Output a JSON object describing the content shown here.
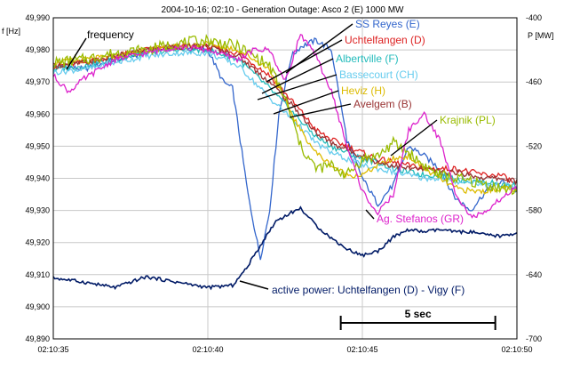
{
  "chart_data": {
    "type": "line",
    "title": "2004-10-16; 02:10 - Generation Outage: Asco 2 (E) 1000 MW",
    "ylabel_left": "f [Hz]",
    "ylabel_right": "P [MW]",
    "ylim_left": [
      49.89,
      49.99
    ],
    "ylim_right": [
      -700,
      -400
    ],
    "xlim_seconds": [
      0,
      15
    ],
    "x_ticks": [
      "02:10:35",
      "02:10:40",
      "02:10:45",
      "02:10:50"
    ],
    "y_ticks_left": [
      "49,990",
      "49,980",
      "49,970",
      "49,960",
      "49,950",
      "49,940",
      "49,930",
      "49,920",
      "49,910",
      "49,900",
      "49,890"
    ],
    "y_ticks_right": [
      "-400",
      "-460",
      "-520",
      "-580",
      "-640",
      "-700"
    ],
    "grid": true,
    "scale_bar_label": "5 sec",
    "frequency_label": "frequency",
    "power_label": "active power: Uchtelfangen (D) - Vigy (F)",
    "series": [
      {
        "name": "SS Reyes (E)",
        "color": "#3366cc",
        "axis": "left",
        "x": [
          0,
          1,
          2,
          3,
          4,
          5,
          5.5,
          5.8,
          6,
          6.3,
          6.7,
          7,
          7.3,
          7.7,
          8,
          8.5,
          9,
          9.5,
          10,
          10.5,
          11,
          11.5,
          12,
          12.5,
          13,
          13.5,
          14,
          14.5,
          15
        ],
        "y": [
          49.975,
          49.974,
          49.977,
          49.979,
          49.981,
          49.98,
          49.97,
          49.968,
          49.955,
          49.935,
          49.915,
          49.93,
          49.96,
          49.978,
          49.981,
          49.983,
          49.98,
          49.952,
          49.94,
          49.932,
          49.938,
          49.95,
          49.947,
          49.943,
          49.934,
          49.93,
          49.936,
          49.939,
          49.936
        ]
      },
      {
        "name": "Uchtelfangen (D)",
        "color": "#dd2222",
        "axis": "left",
        "x": [
          0,
          1,
          2,
          3,
          4,
          5,
          6,
          7,
          8,
          8.5,
          9,
          9.5,
          10,
          10.5,
          11,
          11.5,
          12,
          12.5,
          13,
          13.5,
          14,
          14.5,
          15
        ],
        "y": [
          49.975,
          49.976,
          49.978,
          49.98,
          49.981,
          49.981,
          49.979,
          49.972,
          49.961,
          49.955,
          49.952,
          49.95,
          49.948,
          49.946,
          49.945,
          49.944,
          49.943,
          49.943,
          49.943,
          49.942,
          49.941,
          49.941,
          49.938
        ]
      },
      {
        "name": "Albertville (F)",
        "color": "#22bbbb",
        "axis": "left",
        "x": [
          0,
          1,
          2,
          3,
          4,
          5,
          6,
          7,
          8,
          8.5,
          9,
          9.5,
          10,
          10.5,
          11,
          11.5,
          12,
          12.5,
          13,
          13.5,
          14,
          14.5,
          15
        ],
        "y": [
          49.974,
          49.975,
          49.977,
          49.979,
          49.98,
          49.98,
          49.977,
          49.968,
          49.958,
          49.953,
          49.95,
          49.948,
          49.946,
          49.945,
          49.943,
          49.942,
          49.941,
          49.941,
          49.94,
          49.939,
          49.939,
          49.938,
          49.938
        ]
      },
      {
        "name": "Bassecourt (CH)",
        "color": "#66ccee",
        "axis": "left",
        "x": [
          0,
          1,
          2,
          3,
          4,
          5,
          6,
          7,
          8,
          8.5,
          9,
          9.5,
          10,
          10.5,
          11,
          11.5,
          12,
          12.5,
          13,
          13.5,
          14,
          14.5,
          15
        ],
        "y": [
          49.973,
          49.974,
          49.976,
          49.978,
          49.979,
          49.979,
          49.975,
          49.965,
          49.956,
          49.951,
          49.948,
          49.946,
          49.944,
          49.943,
          49.942,
          49.941,
          49.94,
          49.94,
          49.939,
          49.939,
          49.938,
          49.938,
          49.937
        ]
      },
      {
        "name": "Heviz (H)",
        "color": "#ddbb00",
        "axis": "left",
        "x": [
          0,
          1,
          2,
          3,
          4,
          5,
          6,
          6.5,
          7,
          7.5,
          8,
          8.5,
          9,
          9.5,
          10,
          10.5,
          11,
          11.5,
          12,
          12.5,
          13,
          13.5,
          14,
          14.5,
          15
        ],
        "y": [
          49.976,
          49.977,
          49.978,
          49.98,
          49.981,
          49.982,
          49.98,
          49.977,
          49.974,
          49.964,
          49.955,
          49.948,
          49.944,
          49.941,
          49.941,
          49.944,
          49.946,
          49.947,
          49.943,
          49.94,
          49.937,
          49.936,
          49.936,
          49.937,
          49.936
        ]
      },
      {
        "name": "Avelgem (B)",
        "color": "#993333",
        "axis": "left",
        "x": [
          0,
          1,
          2,
          3,
          4,
          5,
          6,
          7,
          8,
          8.5,
          9,
          9.5,
          10,
          10.5,
          11,
          11.5,
          12,
          12.5,
          13,
          13.5,
          14,
          14.5,
          15
        ],
        "y": [
          49.975,
          49.976,
          49.978,
          49.98,
          49.981,
          49.981,
          49.978,
          49.97,
          49.96,
          49.954,
          49.951,
          49.949,
          49.947,
          49.945,
          49.944,
          49.943,
          49.943,
          49.942,
          49.942,
          49.941,
          49.94,
          49.94,
          49.939
        ]
      },
      {
        "name": "Krajnik (PL)",
        "color": "#99bb00",
        "axis": "left",
        "x": [
          0,
          1,
          2,
          3,
          4,
          5,
          6,
          6.5,
          7,
          7.5,
          8,
          8.5,
          9,
          9.5,
          10,
          10.5,
          11,
          11.5,
          12,
          12.5,
          13,
          13.5,
          14,
          14.5,
          15
        ],
        "y": [
          49.976,
          49.977,
          49.979,
          49.98,
          49.982,
          49.983,
          49.981,
          49.978,
          49.975,
          49.965,
          49.95,
          49.943,
          49.944,
          49.941,
          49.946,
          49.947,
          49.951,
          49.948,
          49.944,
          49.941,
          49.94,
          49.939,
          49.938,
          49.937,
          49.936
        ]
      },
      {
        "name": "Ag. Stefanos (GR)",
        "color": "#dd22cc",
        "axis": "left",
        "x": [
          0,
          0.5,
          1,
          2,
          3,
          4,
          5,
          6,
          6.5,
          7,
          7.5,
          8,
          8.5,
          9,
          9.5,
          10,
          10.5,
          11,
          11.5,
          12,
          12.5,
          13,
          13.5,
          14,
          14.5,
          15
        ],
        "y": [
          49.972,
          49.967,
          49.971,
          49.977,
          49.979,
          49.981,
          49.98,
          49.977,
          49.98,
          49.98,
          49.97,
          49.985,
          49.978,
          49.967,
          49.95,
          49.936,
          49.929,
          49.935,
          49.955,
          49.96,
          49.952,
          49.936,
          49.928,
          49.929,
          49.934,
          49.937
        ]
      },
      {
        "name": "active power: Uchtelfangen (D) - Vigy (F)",
        "color": "#001a66",
        "axis": "right",
        "x": [
          0,
          1,
          2,
          3,
          4,
          5,
          5.8,
          6.2,
          6.8,
          7.2,
          7.7,
          8,
          8.5,
          9,
          9.5,
          10,
          10.5,
          11,
          11.5,
          12,
          12.5,
          13,
          13.5,
          14,
          14.5,
          15
        ],
        "y": [
          -643,
          -647,
          -652,
          -642,
          -647,
          -652,
          -650,
          -636,
          -608,
          -590,
          -582,
          -578,
          -594,
          -606,
          -616,
          -622,
          -618,
          -605,
          -598,
          -600,
          -598,
          -600,
          -600,
          -603,
          -604,
          -601
        ]
      }
    ],
    "annotations": [
      {
        "text": "SS Reyes (E)",
        "series": 0
      },
      {
        "text": "Uchtelfangen (D)",
        "series": 1
      },
      {
        "text": "Albertville (F)",
        "series": 2
      },
      {
        "text": "Bassecourt (CH)",
        "series": 3
      },
      {
        "text": "Heviz (H)",
        "series": 4
      },
      {
        "text": "Avelgem (B)",
        "series": 5
      },
      {
        "text": "Krajnik (PL)",
        "series": 6
      },
      {
        "text": "Ag. Stefanos (GR)",
        "series": 7
      }
    ]
  }
}
